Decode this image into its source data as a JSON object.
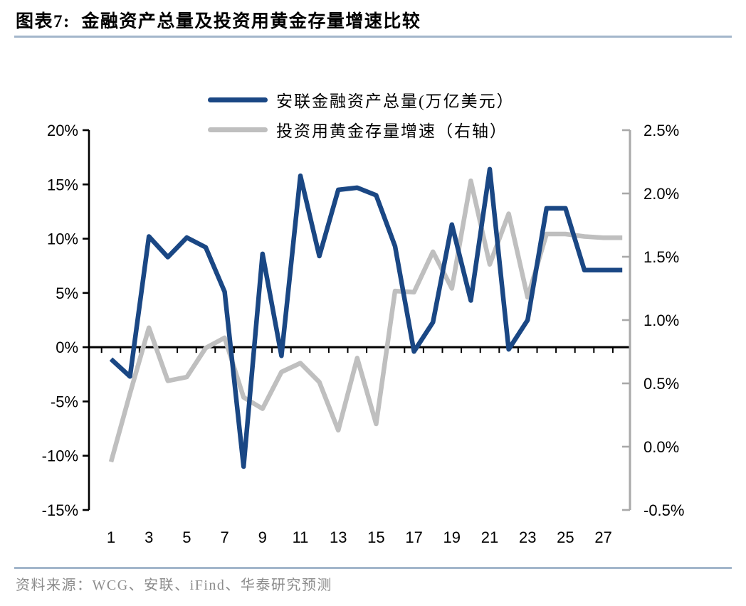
{
  "header": {
    "title": "图表7:  金融资产总量及投资用黄金存量增速比较"
  },
  "footer": {
    "source": "资料来源：WCG、安联、iFind、华泰研究预测"
  },
  "colors": {
    "series_blue": "#1a4784",
    "series_gray": "#bfbfbf",
    "divider_rule": "#a3b6cb",
    "right_axis_line": "#a9a9a9",
    "axis_black": "#000000",
    "source_text": "#8c8c8c"
  },
  "chart_data": {
    "type": "line",
    "grid": false,
    "legend_position": "top",
    "x": [
      1,
      2,
      3,
      4,
      5,
      6,
      7,
      8,
      9,
      10,
      11,
      12,
      13,
      14,
      15,
      16,
      17,
      18,
      19,
      20,
      21,
      22,
      23,
      24,
      25,
      26,
      27,
      28
    ],
    "x_ticks": [
      {
        "x": 1,
        "label": "1"
      },
      {
        "x": 3,
        "label": "3"
      },
      {
        "x": 5,
        "label": "5"
      },
      {
        "x": 7,
        "label": "7"
      },
      {
        "x": 9,
        "label": "9"
      },
      {
        "x": 11,
        "label": "11"
      },
      {
        "x": 13,
        "label": "13"
      },
      {
        "x": 15,
        "label": "15"
      },
      {
        "x": 17,
        "label": "17"
      },
      {
        "x": 19,
        "label": "19"
      },
      {
        "x": 21,
        "label": "21"
      },
      {
        "x": 23,
        "label": "23"
      },
      {
        "x": 25,
        "label": "25"
      },
      {
        "x": 27,
        "label": "27"
      }
    ],
    "left_axis": {
      "min": -15,
      "max": 20,
      "unit": "%",
      "ticks": [
        {
          "value": 20,
          "label": "20%"
        },
        {
          "value": 15,
          "label": "15%"
        },
        {
          "value": 10,
          "label": "10%"
        },
        {
          "value": 5,
          "label": "5%"
        },
        {
          "value": 0,
          "label": "0%"
        },
        {
          "value": -5,
          "label": "-5%"
        },
        {
          "value": -10,
          "label": "-10%"
        },
        {
          "value": -15,
          "label": "-15%"
        }
      ]
    },
    "right_axis": {
      "min": -0.5,
      "max": 2.5,
      "unit": "%",
      "ticks": [
        {
          "value": 2.5,
          "label": "2.5%"
        },
        {
          "value": 2.0,
          "label": "2.0%"
        },
        {
          "value": 1.5,
          "label": "1.5%"
        },
        {
          "value": 1.0,
          "label": "1.0%"
        },
        {
          "value": 0.5,
          "label": "0.5%"
        },
        {
          "value": 0.0,
          "label": "0.0%"
        },
        {
          "value": -0.5,
          "label": "-0.5%"
        }
      ]
    },
    "series": [
      {
        "name": "安联金融资产总量(万亿美元）",
        "axis": "left",
        "color": "#1a4784",
        "values": [
          -1.1,
          -2.7,
          10.2,
          8.3,
          10.1,
          9.2,
          5.1,
          -11.0,
          8.6,
          -0.8,
          15.8,
          8.4,
          14.5,
          14.7,
          14.0,
          9.3,
          -0.4,
          2.3,
          11.3,
          4.3,
          16.4,
          -0.2,
          2.5,
          12.8,
          12.8,
          7.1,
          7.1,
          7.1
        ]
      },
      {
        "name": "投资用黄金存量增速（右轴）",
        "axis": "right",
        "color": "#bfbfbf",
        "values": [
          -0.12,
          0.42,
          0.94,
          0.52,
          0.55,
          0.78,
          0.86,
          0.39,
          0.3,
          0.59,
          0.66,
          0.51,
          0.13,
          0.7,
          0.18,
          1.23,
          1.22,
          1.54,
          1.25,
          2.1,
          1.44,
          1.84,
          1.18,
          1.68,
          1.68,
          1.66,
          1.65,
          1.65
        ]
      }
    ]
  }
}
